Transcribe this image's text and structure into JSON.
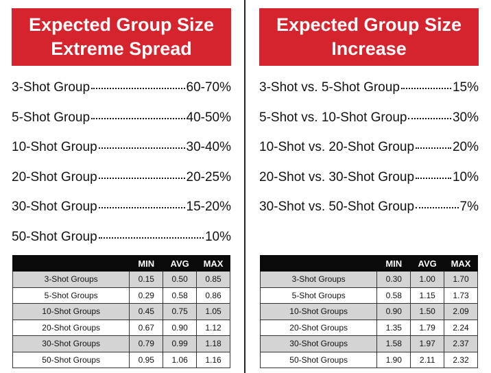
{
  "left": {
    "title_line1": "Expected Group Size",
    "title_line2": "Extreme Spread",
    "entries": [
      {
        "label": "3-Shot Group",
        "value": "60-70%"
      },
      {
        "label": "5-Shot Group",
        "value": "40-50%"
      },
      {
        "label": "10-Shot Group",
        "value": "30-40%"
      },
      {
        "label": "20-Shot Group",
        "value": "20-25%"
      },
      {
        "label": "30-Shot Group",
        "value": "15-20%"
      },
      {
        "label": "50-Shot Group",
        "value": "10%"
      }
    ],
    "table": {
      "headers": [
        "",
        "MIN",
        "AVG",
        "MAX"
      ],
      "rows": [
        {
          "name": "3-Shot Groups",
          "min": "0.15",
          "avg": "0.50",
          "max": "0.85"
        },
        {
          "name": "5-Shot Groups",
          "min": "0.29",
          "avg": "0.58",
          "max": "0.86"
        },
        {
          "name": "10-Shot Groups",
          "min": "0.45",
          "avg": "0.75",
          "max": "1.05"
        },
        {
          "name": "20-Shot Groups",
          "min": "0.67",
          "avg": "0.90",
          "max": "1.12"
        },
        {
          "name": "30-Shot Groups",
          "min": "0.79",
          "avg": "0.99",
          "max": "1.18"
        },
        {
          "name": "50-Shot Groups",
          "min": "0.95",
          "avg": "1.06",
          "max": "1.16"
        }
      ]
    }
  },
  "right": {
    "title_line1": "Expected Group Size",
    "title_line2": "Increase",
    "entries": [
      {
        "label": "3-Shot vs. 5-Shot Group",
        "value": "15%"
      },
      {
        "label": "5-Shot vs. 10-Shot Group",
        "value": "30%"
      },
      {
        "label": "10-Shot vs. 20-Shot Group",
        "value": "20%"
      },
      {
        "label": "20-Shot vs. 30-Shot Group",
        "value": "10%"
      },
      {
        "label": "30-Shot vs. 50-Shot Group",
        "value": "7%"
      }
    ],
    "table": {
      "headers": [
        "",
        "MIN",
        "AVG",
        "MAX"
      ],
      "rows": [
        {
          "name": "3-Shot Groups",
          "min": "0.30",
          "avg": "1.00",
          "max": "1.70"
        },
        {
          "name": "5-Shot Groups",
          "min": "0.58",
          "avg": "1.15",
          "max": "1.73"
        },
        {
          "name": "10-Shot Groups",
          "min": "0.90",
          "avg": "1.50",
          "max": "2.09"
        },
        {
          "name": "20-Shot Groups",
          "min": "1.35",
          "avg": "1.79",
          "max": "2.24"
        },
        {
          "name": "30-Shot Groups",
          "min": "1.58",
          "avg": "1.97",
          "max": "2.37"
        },
        {
          "name": "50-Shot Groups",
          "min": "1.90",
          "avg": "2.11",
          "max": "2.32"
        }
      ]
    }
  },
  "colors": {
    "banner": "#d6242f",
    "table_header": "#0a0a0a",
    "row_shade": "#d4d4d4"
  }
}
